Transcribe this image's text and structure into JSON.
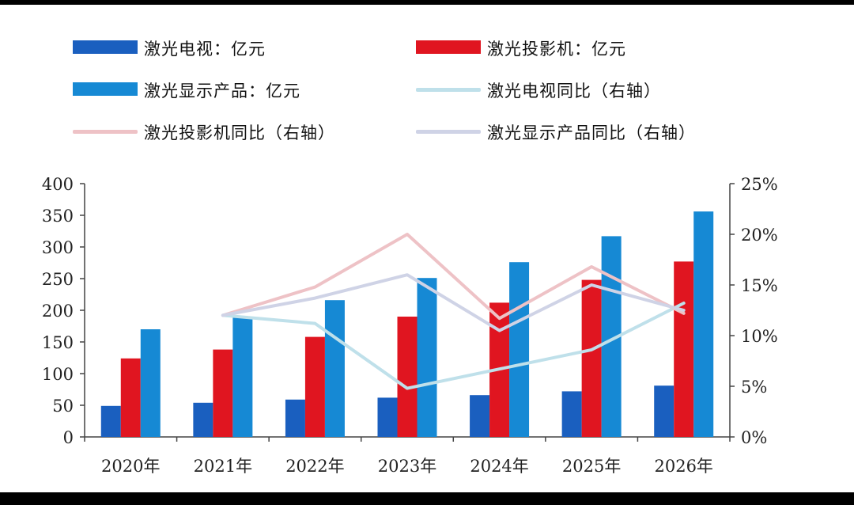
{
  "chart_data": {
    "type": "bar+line",
    "categories": [
      "2020年",
      "2021年",
      "2022年",
      "2023年",
      "2024年",
      "2025年",
      "2026年"
    ],
    "series": [
      {
        "name": "激光电视：亿元",
        "kind": "bar",
        "axis": "left",
        "color": "#1a5fbf",
        "values": [
          49,
          54,
          59,
          62,
          66,
          72,
          81
        ]
      },
      {
        "name": "激光投影机：亿元",
        "kind": "bar",
        "axis": "left",
        "color": "#e01520",
        "values": [
          124,
          138,
          158,
          190,
          212,
          248,
          277
        ]
      },
      {
        "name": "激光显示产品：亿元",
        "kind": "bar",
        "axis": "left",
        "color": "#1689d4",
        "values": [
          170,
          190,
          216,
          251,
          276,
          317,
          356
        ]
      },
      {
        "name": "激光电视同比（右轴）",
        "kind": "line",
        "axis": "right",
        "color": "#bfe0ea",
        "values": [
          null,
          0.12,
          0.112,
          0.048,
          0.067,
          0.086,
          0.132
        ]
      },
      {
        "name": "激光投影机同比（右轴）",
        "kind": "line",
        "axis": "right",
        "color": "#eec2c6",
        "values": [
          null,
          0.12,
          0.148,
          0.2,
          0.117,
          0.168,
          0.122
        ]
      },
      {
        "name": "激光显示产品同比（右轴）",
        "kind": "line",
        "axis": "right",
        "color": "#cfd3e6",
        "values": [
          null,
          0.12,
          0.137,
          0.16,
          0.105,
          0.15,
          0.125
        ]
      }
    ],
    "y_left": {
      "min": 0,
      "max": 400,
      "ticks": [
        "0",
        "50",
        "100",
        "150",
        "200",
        "250",
        "300",
        "350",
        "400"
      ]
    },
    "y_right": {
      "min": 0,
      "max": 0.25,
      "ticks": [
        "0%",
        "5%",
        "10%",
        "15%",
        "20%",
        "25%"
      ]
    },
    "title": "",
    "xlabel": "",
    "ylabel": "",
    "legend": "top"
  }
}
